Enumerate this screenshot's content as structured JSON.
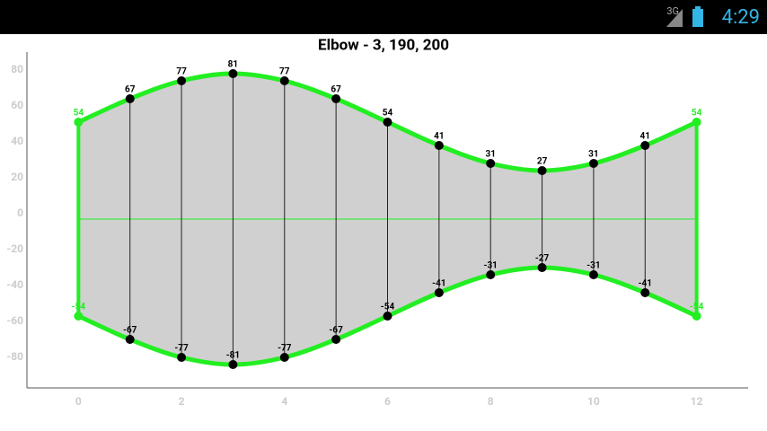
{
  "status_bar": {
    "network": "3G",
    "time": "4:29"
  },
  "chart_data": {
    "type": "band",
    "title": "Elbow - 3, 190, 200",
    "x": [
      0,
      1,
      2,
      3,
      4,
      5,
      6,
      7,
      8,
      9,
      10,
      11,
      12
    ],
    "series": [
      {
        "color": "#22ee22",
        "values": [
          54,
          67,
          77,
          81,
          77,
          67,
          54,
          41,
          31,
          27,
          31,
          41,
          54
        ]
      },
      {
        "color": "#22ee22",
        "values": [
          -54,
          -67,
          -77,
          -81,
          -77,
          -67,
          -54,
          -41,
          -31,
          -27,
          -31,
          -41,
          -54
        ]
      }
    ],
    "marker_color": "#000000",
    "fill_color": "#d0d0d0",
    "xlim": [
      -1,
      13
    ],
    "xticks": [
      0,
      2,
      4,
      6,
      8,
      10,
      12
    ],
    "ylim": [
      -94,
      93
    ],
    "yticks": [
      -80,
      -60,
      -40,
      -20,
      0,
      20,
      40,
      60,
      80
    ]
  }
}
